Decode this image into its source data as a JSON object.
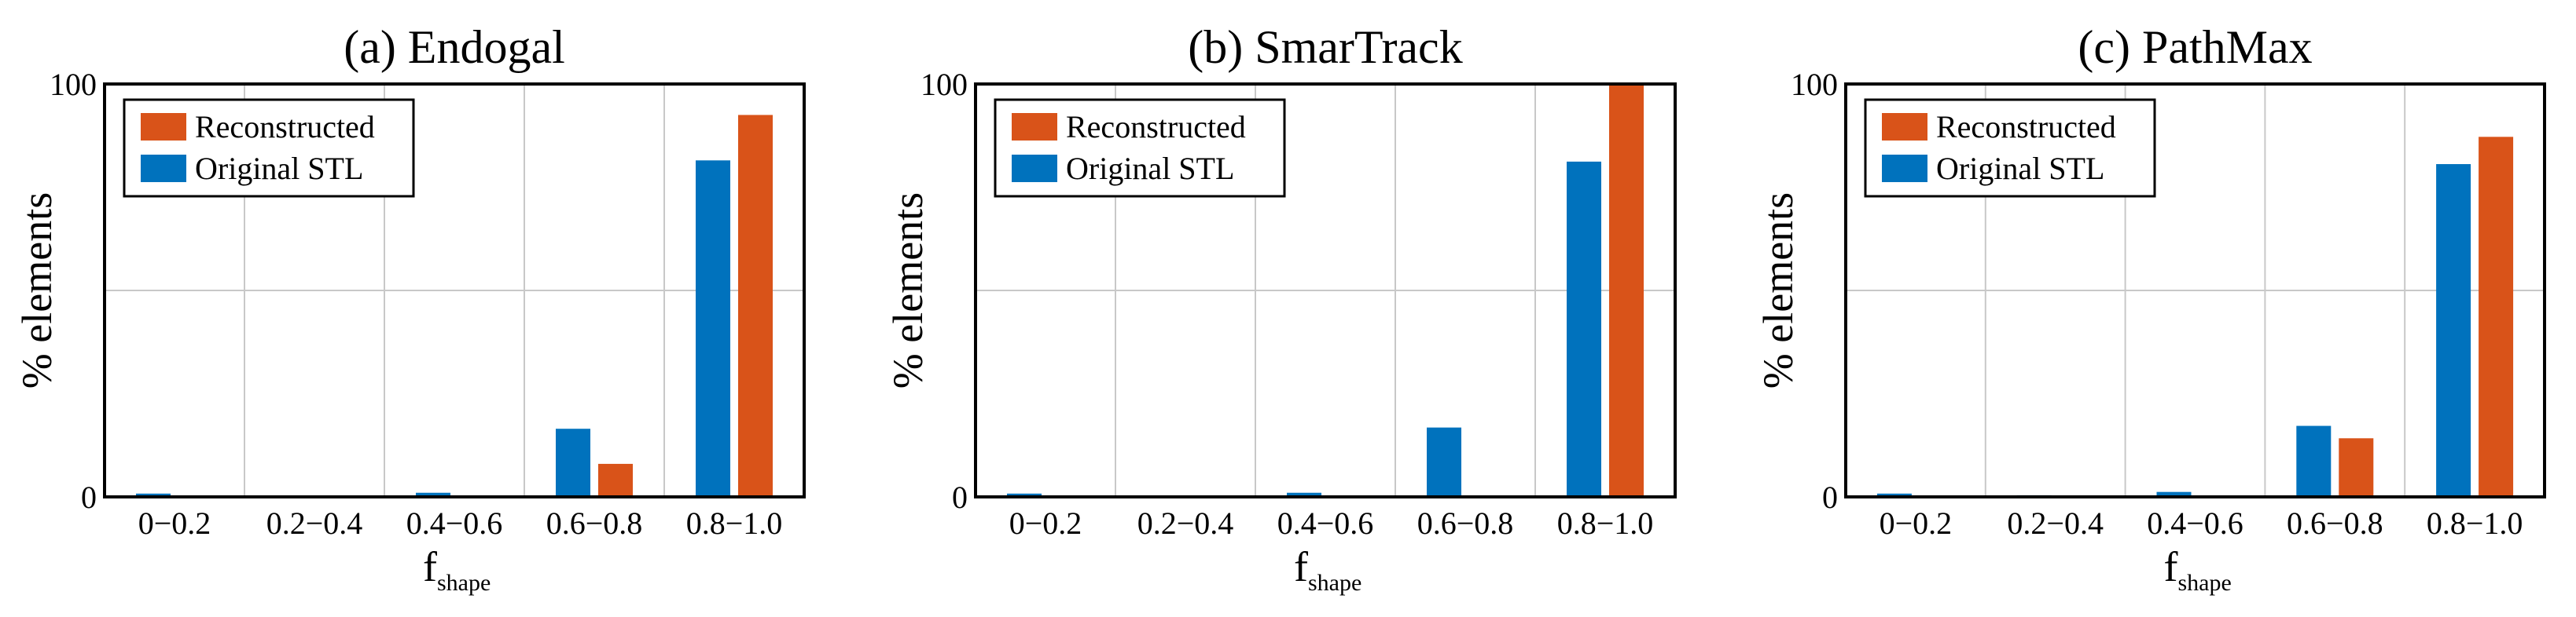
{
  "chart_data": [
    {
      "type": "bar",
      "title": "(a) Endogal",
      "xlabel": "f",
      "xlabel_subscript": "shape",
      "ylabel": "% elements",
      "ylim": [
        0,
        100
      ],
      "yticks": [
        0,
        100
      ],
      "ytick_labels": [
        "0",
        "100"
      ],
      "grid": true,
      "legend_position": "top-left",
      "categories": [
        "0−0.2",
        "0.2−0.4",
        "0.4−0.6",
        "0.6−0.8",
        "0.8−1.0"
      ],
      "series": [
        {
          "name": "Original STL",
          "color": "#0072bd",
          "values": [
            0.8,
            0.0,
            1.0,
            16.5,
            81.5
          ]
        },
        {
          "name": "Reconstructed",
          "color": "#d95319",
          "values": [
            0.0,
            0.0,
            0.0,
            8.0,
            92.5
          ]
        }
      ]
    },
    {
      "type": "bar",
      "title": "(b) SmarTrack",
      "xlabel": "f",
      "xlabel_subscript": "shape",
      "ylabel": "% elements",
      "ylim": [
        0,
        100
      ],
      "yticks": [
        0,
        100
      ],
      "ytick_labels": [
        "0",
        "100"
      ],
      "grid": true,
      "legend_position": "top-left",
      "categories": [
        "0−0.2",
        "0.2−0.4",
        "0.4−0.6",
        "0.6−0.8",
        "0.8−1.0"
      ],
      "series": [
        {
          "name": "Original STL",
          "color": "#0072bd",
          "values": [
            0.8,
            0.0,
            1.0,
            16.8,
            81.2
          ]
        },
        {
          "name": "Reconstructed",
          "color": "#d95319",
          "values": [
            0.0,
            0.0,
            0.0,
            0.0,
            100.0
          ]
        }
      ]
    },
    {
      "type": "bar",
      "title": "(c) PathMax",
      "xlabel": "f",
      "xlabel_subscript": "shape",
      "ylabel": "% elements",
      "ylim": [
        0,
        100
      ],
      "yticks": [
        0,
        100
      ],
      "ytick_labels": [
        "0",
        "100"
      ],
      "grid": true,
      "legend_position": "top-left",
      "categories": [
        "0−0.2",
        "0.2−0.4",
        "0.4−0.6",
        "0.6−0.8",
        "0.8−1.0"
      ],
      "series": [
        {
          "name": "Original STL",
          "color": "#0072bd",
          "values": [
            0.8,
            0.4,
            1.2,
            17.2,
            80.6
          ]
        },
        {
          "name": "Reconstructed",
          "color": "#d95319",
          "values": [
            0.0,
            0.0,
            0.0,
            14.2,
            87.2
          ]
        }
      ]
    }
  ]
}
